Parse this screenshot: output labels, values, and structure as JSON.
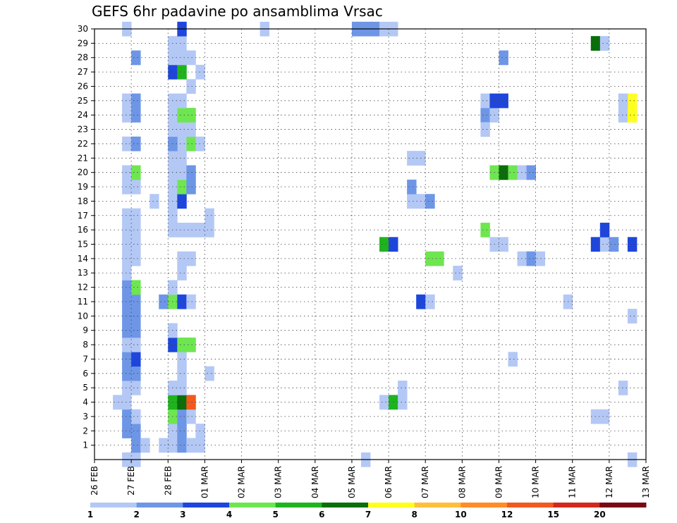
{
  "chart_data": {
    "type": "heatmap",
    "title": "GEFS 6hr padavine po ansamblima Vrsac",
    "xlabel": "",
    "ylabel": "",
    "x_tick_labels": [
      "26 FEB",
      "27 FEB",
      "28 FEB",
      "01 MAR",
      "02 MAR",
      "03 MAR",
      "04 MAR",
      "05 MAR",
      "06 MAR",
      "07 MAR",
      "08 MAR",
      "09 MAR",
      "10 MAR",
      "11 MAR",
      "12 MAR",
      "13 MAR"
    ],
    "y_tick_labels": [
      "1",
      "2",
      "3",
      "4",
      "5",
      "6",
      "7",
      "8",
      "9",
      "10",
      "11",
      "12",
      "13",
      "14",
      "15",
      "16",
      "17",
      "18",
      "19",
      "20",
      "21",
      "22",
      "23",
      "24",
      "25",
      "26",
      "27",
      "28",
      "29",
      "30"
    ],
    "x_range": [
      0,
      60
    ],
    "y_range": [
      0,
      30
    ],
    "x_unit": "6-hour steps from 26 FEB 00Z",
    "grid": true,
    "colorbar": {
      "bounds": [
        1,
        2,
        3,
        4,
        5,
        6,
        7,
        8,
        10,
        12,
        15,
        20,
        30
      ],
      "labels": [
        "1",
        "2",
        "3",
        "4",
        "5",
        "6",
        "7",
        "8",
        "10",
        "12",
        "15",
        "20"
      ],
      "colors": [
        "#b4c8f5",
        "#6e96e6",
        "#1e46dc",
        "#6ee650",
        "#1eb41e",
        "#0a6e0a",
        "#ffff1e",
        "#ffbe3c",
        "#ff8c28",
        "#f05a1e",
        "#d2281e",
        "#780a14"
      ]
    },
    "cells": [
      [
        3,
        0,
        1
      ],
      [
        4,
        0,
        1
      ],
      [
        4,
        1,
        2
      ],
      [
        5,
        1,
        1
      ],
      [
        3,
        2,
        2
      ],
      [
        4,
        2,
        2
      ],
      [
        3,
        3,
        2
      ],
      [
        4,
        3,
        1
      ],
      [
        2,
        4,
        1
      ],
      [
        3,
        4,
        1
      ],
      [
        3,
        5,
        1
      ],
      [
        4,
        5,
        1
      ],
      [
        3,
        6,
        2
      ],
      [
        4,
        6,
        2
      ],
      [
        3,
        7,
        2
      ],
      [
        4,
        7,
        3
      ],
      [
        3,
        8,
        1
      ],
      [
        4,
        8,
        1
      ],
      [
        3,
        9,
        2
      ],
      [
        4,
        9,
        2
      ],
      [
        3,
        10,
        2
      ],
      [
        4,
        10,
        2
      ],
      [
        3,
        11,
        2
      ],
      [
        4,
        11,
        2
      ],
      [
        3,
        12,
        2
      ],
      [
        4,
        12,
        4
      ],
      [
        3,
        13,
        1
      ],
      [
        3,
        14,
        1
      ],
      [
        4,
        14,
        1
      ],
      [
        3,
        15,
        1
      ],
      [
        4,
        15,
        1
      ],
      [
        3,
        16,
        1
      ],
      [
        4,
        16,
        1
      ],
      [
        3,
        17,
        1
      ],
      [
        4,
        17,
        1
      ],
      [
        3,
        19,
        1
      ],
      [
        4,
        19,
        1
      ],
      [
        3,
        20,
        1
      ],
      [
        4,
        20,
        4
      ],
      [
        3,
        22,
        1
      ],
      [
        4,
        22,
        2
      ],
      [
        3,
        24,
        1
      ],
      [
        4,
        24,
        2
      ],
      [
        3,
        25,
        1
      ],
      [
        4,
        25,
        2
      ],
      [
        4,
        28,
        2
      ],
      [
        3,
        30,
        1
      ],
      [
        7,
        1,
        1
      ],
      [
        8,
        1,
        1
      ],
      [
        9,
        1,
        2
      ],
      [
        10,
        1,
        1
      ],
      [
        8,
        2,
        1
      ],
      [
        9,
        2,
        2
      ],
      [
        8,
        3,
        4
      ],
      [
        9,
        3,
        2
      ],
      [
        10,
        3,
        1
      ],
      [
        8,
        4,
        5
      ],
      [
        9,
        4,
        6
      ],
      [
        10,
        4,
        10
      ],
      [
        8,
        5,
        1
      ],
      [
        9,
        5,
        1
      ],
      [
        9,
        6,
        1
      ],
      [
        9,
        7,
        1
      ],
      [
        8,
        8,
        3
      ],
      [
        9,
        8,
        4
      ],
      [
        10,
        8,
        4
      ],
      [
        8,
        9,
        1
      ],
      [
        7,
        11,
        2
      ],
      [
        8,
        11,
        4
      ],
      [
        9,
        11,
        3
      ],
      [
        10,
        11,
        1
      ],
      [
        8,
        12,
        1
      ],
      [
        9,
        13,
        1
      ],
      [
        9,
        14,
        1
      ],
      [
        10,
        14,
        1
      ],
      [
        8,
        16,
        1
      ],
      [
        9,
        16,
        1
      ],
      [
        10,
        16,
        1
      ],
      [
        11,
        16,
        1
      ],
      [
        8,
        17,
        1
      ],
      [
        6,
        18,
        1
      ],
      [
        8,
        18,
        1
      ],
      [
        9,
        18,
        3
      ],
      [
        8,
        19,
        1
      ],
      [
        9,
        19,
        4
      ],
      [
        10,
        19,
        2
      ],
      [
        8,
        20,
        1
      ],
      [
        9,
        20,
        1
      ],
      [
        10,
        20,
        2
      ],
      [
        8,
        21,
        1
      ],
      [
        9,
        21,
        1
      ],
      [
        9,
        22,
        1
      ],
      [
        8,
        22,
        2
      ],
      [
        10,
        22,
        4
      ],
      [
        11,
        22,
        1
      ],
      [
        8,
        23,
        1
      ],
      [
        9,
        23,
        1
      ],
      [
        10,
        23,
        1
      ],
      [
        8,
        24,
        1
      ],
      [
        9,
        24,
        4
      ],
      [
        10,
        24,
        4
      ],
      [
        8,
        25,
        1
      ],
      [
        9,
        25,
        1
      ],
      [
        10,
        26,
        1
      ],
      [
        8,
        27,
        3
      ],
      [
        9,
        27,
        5
      ],
      [
        11,
        27,
        1
      ],
      [
        8,
        28,
        1
      ],
      [
        9,
        28,
        1
      ],
      [
        10,
        28,
        1
      ],
      [
        8,
        29,
        1
      ],
      [
        9,
        29,
        1
      ],
      [
        9,
        30,
        3
      ],
      [
        11,
        1,
        1
      ],
      [
        11,
        2,
        1
      ],
      [
        12,
        6,
        1
      ],
      [
        12,
        16,
        1
      ],
      [
        12,
        17,
        1
      ],
      [
        18,
        30,
        1
      ],
      [
        28,
        30,
        2
      ],
      [
        29,
        30,
        2
      ],
      [
        30,
        30,
        2
      ],
      [
        31,
        30,
        1
      ],
      [
        32,
        30,
        1
      ],
      [
        29,
        0,
        1
      ],
      [
        31,
        4,
        1
      ],
      [
        32,
        4,
        5
      ],
      [
        33,
        4,
        1
      ],
      [
        33,
        5,
        1
      ],
      [
        31,
        15,
        5
      ],
      [
        32,
        15,
        3
      ],
      [
        35,
        11,
        3
      ],
      [
        36,
        11,
        1
      ],
      [
        36,
        14,
        4
      ],
      [
        37,
        14,
        4
      ],
      [
        35,
        18,
        1
      ],
      [
        34,
        18,
        1
      ],
      [
        36,
        18,
        2
      ],
      [
        39,
        13,
        1
      ],
      [
        34,
        19,
        2
      ],
      [
        34,
        21,
        1
      ],
      [
        35,
        21,
        1
      ],
      [
        42,
        16,
        4
      ],
      [
        42,
        24,
        2
      ],
      [
        43,
        24,
        1
      ],
      [
        42,
        23,
        1
      ],
      [
        43,
        20,
        4
      ],
      [
        44,
        20,
        6
      ],
      [
        45,
        20,
        4
      ],
      [
        46,
        20,
        1
      ],
      [
        47,
        20,
        2
      ],
      [
        43,
        15,
        1
      ],
      [
        44,
        15,
        1
      ],
      [
        46,
        14,
        1
      ],
      [
        47,
        14,
        2
      ],
      [
        48,
        14,
        1
      ],
      [
        42,
        25,
        1
      ],
      [
        43,
        25,
        3
      ],
      [
        44,
        25,
        3
      ],
      [
        44,
        28,
        2
      ],
      [
        45,
        7,
        1
      ],
      [
        51,
        11,
        1
      ],
      [
        54,
        3,
        1
      ],
      [
        55,
        3,
        1
      ],
      [
        54,
        15,
        3
      ],
      [
        55,
        15,
        1
      ],
      [
        56,
        15,
        2
      ],
      [
        55,
        16,
        3
      ],
      [
        54,
        29,
        6
      ],
      [
        55,
        29,
        1
      ],
      [
        57,
        5,
        1
      ],
      [
        58,
        0,
        1
      ],
      [
        58,
        10,
        1
      ],
      [
        57,
        24,
        1
      ],
      [
        58,
        24,
        7
      ],
      [
        58,
        25,
        7
      ],
      [
        57,
        25,
        1
      ],
      [
        58,
        15,
        3
      ]
    ]
  }
}
